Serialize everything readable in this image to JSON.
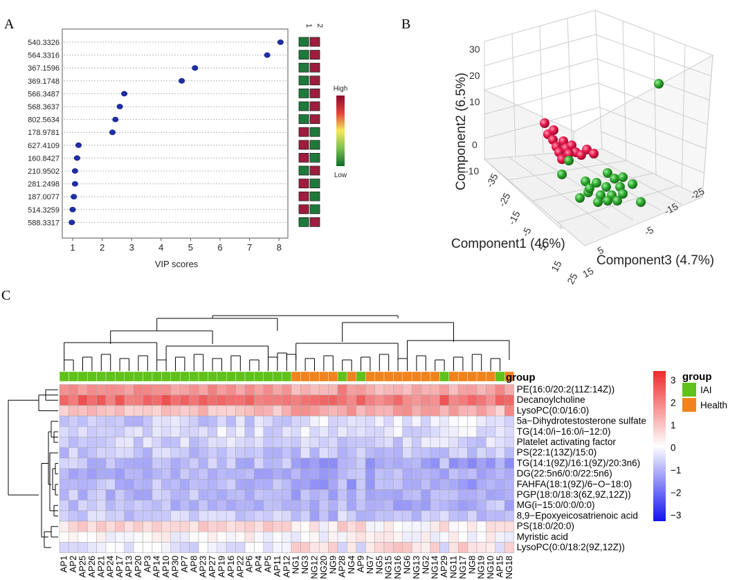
{
  "panels": {
    "a": "A",
    "b": "B",
    "c": "C"
  },
  "chart_data": [
    {
      "type": "scatter",
      "panel": "A",
      "xlabel": "VIP scores",
      "xticks": [
        1,
        2,
        3,
        4,
        5,
        6,
        7,
        8
      ],
      "xlim": [
        0.8,
        8.2
      ],
      "features": [
        "540.3326",
        "564.3316",
        "367.1596",
        "369.1748",
        "566.3487",
        "568.3637",
        "802.5634",
        "178.9781",
        "627.4109",
        "160.8427",
        "210.9502",
        "281.2498",
        "187.0077",
        "514.3259",
        "588.3317"
      ],
      "vip": [
        8.05,
        7.6,
        5.15,
        4.7,
        2.75,
        2.6,
        2.45,
        2.35,
        1.2,
        1.15,
        1.08,
        1.08,
        1.04,
        1.0,
        0.97
      ],
      "group_labels": [
        "1",
        "2"
      ],
      "group_levels": [
        [
          "low",
          "high"
        ],
        [
          "low",
          "high"
        ],
        [
          "low",
          "high"
        ],
        [
          "low",
          "high"
        ],
        [
          "low",
          "high"
        ],
        [
          "low",
          "high"
        ],
        [
          "low",
          "high"
        ],
        [
          "high",
          "low"
        ],
        [
          "high",
          "low"
        ],
        [
          "high",
          "low"
        ],
        [
          "low",
          "high"
        ],
        [
          "high",
          "low"
        ],
        [
          "high",
          "low"
        ],
        [
          "high",
          "low"
        ],
        [
          "low",
          "high"
        ]
      ],
      "colorbar_high": "High",
      "colorbar_low": "Low",
      "colors": {
        "high": "#a01c3c",
        "low": "#1e7a3a",
        "point": "#1f2fa8"
      }
    },
    {
      "type": "scatter3d",
      "panel": "B",
      "xlabel": "Component1 (46%)",
      "ylabel": "Component2 (6.5%)",
      "zlabel": "Component3 (4.7%)",
      "yticks": [
        "30",
        "20",
        "10",
        "0",
        "-10"
      ],
      "xticks": [
        "-35",
        "-25",
        "-15",
        "-5",
        "5",
        "15",
        "25"
      ],
      "zticks": [
        "15",
        "5",
        "-5",
        "-15",
        "-25"
      ],
      "colors": {
        "red": "#e8174a",
        "green": "#2ea82e"
      }
    },
    {
      "type": "heatmap",
      "panel": "C",
      "columns": [
        "AP1",
        "AP2",
        "AP25",
        "AP26",
        "AP21",
        "AP24",
        "AP17",
        "AP13",
        "AP20",
        "AP3",
        "AP14",
        "AP10",
        "AP30",
        "AP7",
        "AP8",
        "AP23",
        "AP27",
        "AP19",
        "AP16",
        "AP22",
        "AP6",
        "AP4",
        "AP5",
        "AP11",
        "AP12",
        "NG1",
        "NG3",
        "NG12",
        "NG20",
        "NG9",
        "AP28",
        "NG4",
        "AP9",
        "NG7",
        "NG5",
        "NG15",
        "NG16",
        "NG6",
        "NG13",
        "NG2",
        "NG14",
        "AP29",
        "NG11",
        "NG17",
        "NG8",
        "NG19",
        "NG10",
        "AP15",
        "NG18"
      ],
      "rows": [
        "PE(16:0/20:2(11Z:14Z))",
        "Decanoylcholine",
        "LysoPC(0:0/16:0)",
        "5a−Dihydrotestosterone sulfate",
        "TG(14:0/i−16:0/i−12:0)",
        "Platelet activating factor",
        "PS(22:1(13Z)/15:0)",
        "TG(14:1(9Z)/16:1(9Z)/20:3n6)",
        "DG(22:5n6/0:0/22:5n6)",
        "FAHFA(18:1(9Z)/6−O−18:0)",
        "PGP(18:0/18:3(6Z,9Z,12Z))",
        "MG(i−15:0/0:0/0:0)",
        "8,9−Epoxyeicosatrienoic acid",
        "PS(18:0/20:0)",
        "Myristic acid",
        "LysoPC(0:0/18:2(9Z,12Z))"
      ],
      "row_base_ap": [
        1.7,
        2.3,
        1.0,
        -0.7,
        -0.45,
        -0.6,
        -0.8,
        -0.9,
        -1.0,
        -0.95,
        -0.9,
        -0.9,
        -0.75,
        0.6,
        0.05,
        -0.35
      ],
      "row_base_ng": [
        1.3,
        2.0,
        1.5,
        -0.25,
        -0.45,
        -0.6,
        -0.75,
        -1.3,
        -1.15,
        -1.2,
        -1.1,
        -1.1,
        -0.95,
        0.15,
        0.05,
        0.6
      ],
      "group_title": "group",
      "legend": [
        {
          "label": "IAI",
          "color": "#5fc11b"
        },
        {
          "label": "Health",
          "color": "#f0831e"
        }
      ],
      "scale_ticks": [
        "3",
        "2",
        "1",
        "0",
        "−1",
        "−2",
        "−3"
      ],
      "scale_range": [
        -3.3,
        3.3
      ]
    }
  ]
}
